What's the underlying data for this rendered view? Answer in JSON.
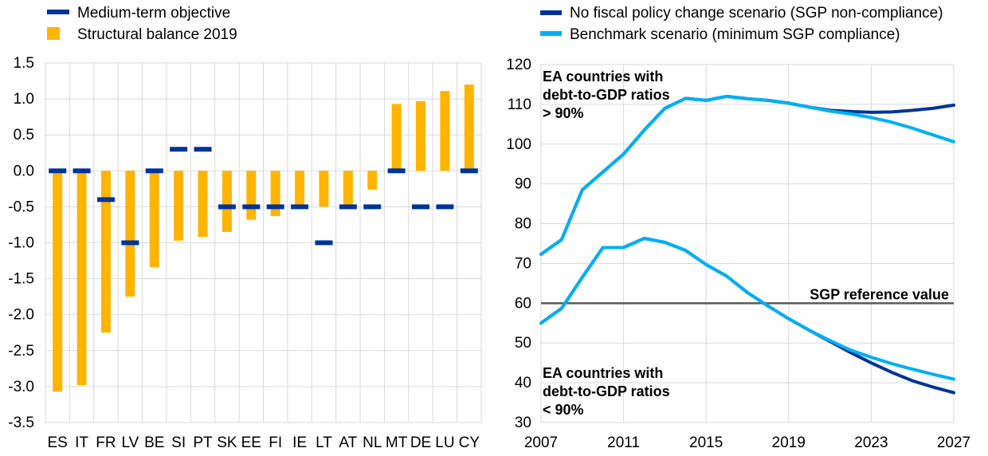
{
  "chart_data": [
    {
      "type": "bar",
      "categories": [
        "ES",
        "IT",
        "FR",
        "LV",
        "BE",
        "SI",
        "PT",
        "SK",
        "EE",
        "FI",
        "IE",
        "LT",
        "AT",
        "NL",
        "MT",
        "DE",
        "LU",
        "CY"
      ],
      "series": [
        {
          "name": "Structural balance 2019",
          "kind": "bar",
          "color": "#FFB400",
          "values": [
            -3.07,
            -2.98,
            -2.25,
            -1.75,
            -1.34,
            -0.97,
            -0.92,
            -0.85,
            -0.68,
            -0.63,
            -0.5,
            -0.5,
            -0.47,
            -0.26,
            0.93,
            0.97,
            1.11,
            1.2
          ]
        },
        {
          "name": "Medium-term objective",
          "kind": "marker",
          "color": "#003399",
          "values": [
            0.0,
            0.0,
            -0.4,
            -1.0,
            0.0,
            0.3,
            0.3,
            -0.5,
            -0.5,
            -0.5,
            -0.5,
            -1.0,
            -0.5,
            -0.5,
            0.0,
            -0.5,
            -0.5,
            0.0
          ]
        }
      ],
      "ylim": [
        -3.5,
        1.5
      ],
      "yticks": [
        "1.5",
        "1.0",
        "0.5",
        "0.0",
        "-0.5",
        "-1.0",
        "-1.5",
        "-2.0",
        "-2.5",
        "-3.0",
        "-3.5"
      ],
      "ytick_values": [
        1.5,
        1.0,
        0.5,
        0.0,
        -0.5,
        -1.0,
        -1.5,
        -2.0,
        -2.5,
        -3.0,
        -3.5
      ],
      "grid": true,
      "legend": {
        "placement": "top-left",
        "items": [
          {
            "label": "Medium-term objective",
            "color": "#003399",
            "kind": "dash"
          },
          {
            "label": "Structural balance 2019",
            "color": "#FFB400",
            "kind": "box"
          }
        ]
      }
    },
    {
      "type": "line",
      "x": [
        2007,
        2008,
        2009,
        2010,
        2011,
        2012,
        2013,
        2014,
        2015,
        2016,
        2017,
        2018,
        2019,
        2020,
        2021,
        2022,
        2023,
        2024,
        2025,
        2026,
        2027
      ],
      "series": [
        {
          "name": "No fiscal policy change scenario (SGP non-compliance)",
          "group": "high",
          "color": "#003399",
          "values": [
            72.3,
            76.0,
            88.5,
            93.0,
            97.5,
            103.5,
            109.0,
            111.5,
            111.0,
            112.0,
            111.4,
            111.0,
            110.3,
            109.3,
            108.5,
            108.2,
            108.0,
            108.1,
            108.5,
            109.0,
            109.8
          ]
        },
        {
          "name": "Benchmark scenario (minimum SGP compliance)",
          "group": "high",
          "color": "#00B0F0",
          "values": [
            72.3,
            76.0,
            88.5,
            93.0,
            97.5,
            103.5,
            109.0,
            111.5,
            111.0,
            112.0,
            111.4,
            111.0,
            110.3,
            109.3,
            108.3,
            107.6,
            106.7,
            105.5,
            104.0,
            102.3,
            100.6
          ]
        },
        {
          "name": "No fiscal policy change scenario (SGP non-compliance)",
          "group": "low",
          "color": "#003399",
          "values": [
            55.0,
            58.7,
            66.5,
            74.0,
            74.0,
            76.3,
            75.3,
            73.3,
            69.7,
            66.8,
            62.7,
            59.3,
            56.1,
            53.2,
            50.4,
            47.6,
            45.0,
            42.6,
            40.5,
            38.9,
            37.5
          ]
        },
        {
          "name": "Benchmark scenario (minimum SGP compliance)",
          "group": "low",
          "color": "#00B0F0",
          "values": [
            55.0,
            58.7,
            66.5,
            74.0,
            74.0,
            76.3,
            75.3,
            73.3,
            69.7,
            66.8,
            62.7,
            59.3,
            56.1,
            53.2,
            50.6,
            48.2,
            46.4,
            44.8,
            43.4,
            42.1,
            40.9
          ]
        }
      ],
      "reference_line": {
        "value": 60,
        "label": "SGP reference value",
        "color": "#595959"
      },
      "ylim": [
        30,
        120
      ],
      "yticks": [
        "120",
        "110",
        "100",
        "90",
        "80",
        "70",
        "60",
        "50",
        "40",
        "30"
      ],
      "ytick_values": [
        120,
        110,
        100,
        90,
        80,
        70,
        60,
        50,
        40,
        30
      ],
      "xticks": [
        "2007",
        "2011",
        "2015",
        "2019",
        "2023",
        "2027"
      ],
      "xtick_values": [
        2007,
        2011,
        2015,
        2019,
        2023,
        2027
      ],
      "grid": true,
      "annotations": [
        {
          "lines": [
            "EA countries with",
            "debt-to-GDP ratios",
            "> 90%"
          ]
        },
        {
          "lines": [
            "EA countries with",
            "debt-to-GDP ratios",
            "< 90%"
          ]
        }
      ],
      "legend": {
        "placement": "top",
        "items": [
          {
            "label": "No fiscal policy change scenario (SGP non-compliance)",
            "color": "#003399"
          },
          {
            "label": "Benchmark scenario (minimum SGP compliance)",
            "color": "#00B0F0"
          }
        ]
      }
    }
  ]
}
